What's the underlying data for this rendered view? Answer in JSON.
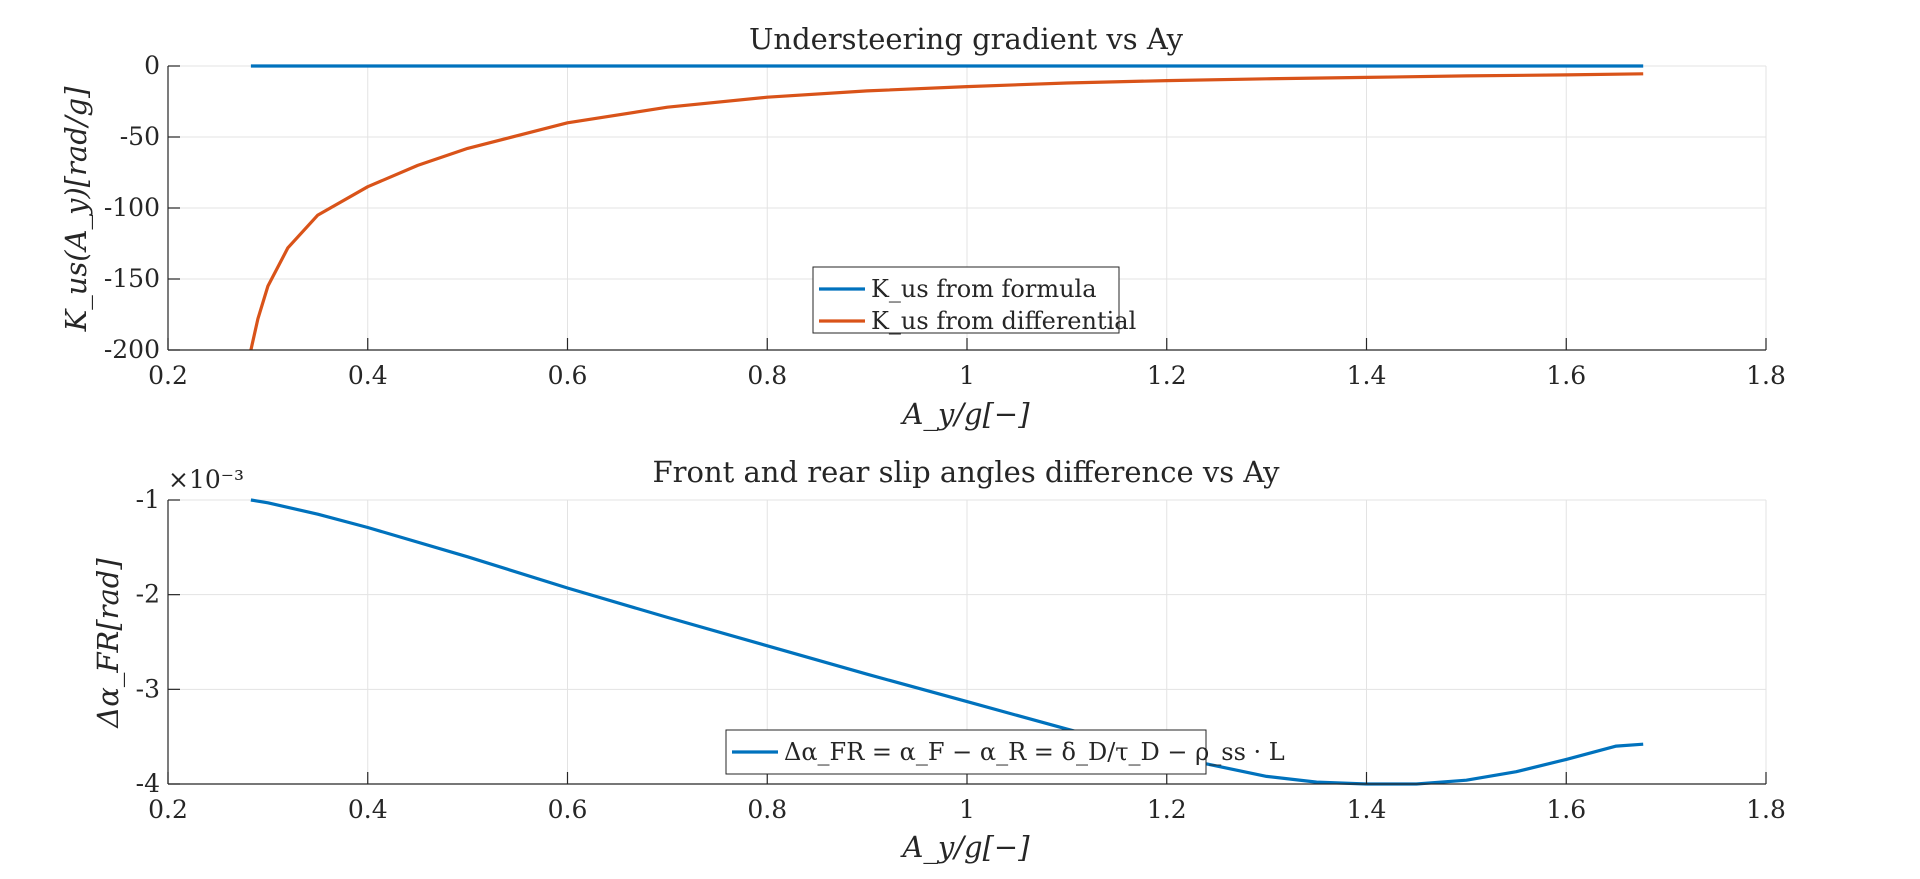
{
  "chart_data": [
    {
      "type": "line",
      "title": "Understeering gradient vs Ay",
      "xlabel": "A_y/g[−]",
      "ylabel": "K_us(A_y)[rad/g]",
      "xlim": [
        0.2,
        1.8
      ],
      "ylim": [
        -200,
        0
      ],
      "xticks": [
        0.2,
        0.4,
        0.6,
        0.8,
        1,
        1.2,
        1.4,
        1.6,
        1.8
      ],
      "xtick_labels": [
        "0.2",
        "0.4",
        "0.6",
        "0.8",
        "1",
        "1.2",
        "1.4",
        "1.6",
        "1.8"
      ],
      "yticks": [
        0,
        -50,
        -100,
        -150,
        -200
      ],
      "ytick_labels": [
        "0",
        "-50",
        "-100",
        "-150",
        "-200"
      ],
      "grid": true,
      "legend": "bottom-center",
      "series": [
        {
          "name": "K_us from formula",
          "color": "#0072BD",
          "x": [
            0.283,
            0.4,
            0.6,
            0.8,
            1.0,
            1.2,
            1.4,
            1.6,
            1.677
          ],
          "y": [
            0,
            0,
            0,
            0,
            0,
            0,
            0,
            0,
            0
          ]
        },
        {
          "name": "K_us from differential",
          "color": "#D95319",
          "x": [
            0.283,
            0.29,
            0.3,
            0.32,
            0.35,
            0.4,
            0.45,
            0.5,
            0.6,
            0.7,
            0.8,
            0.9,
            1.0,
            1.1,
            1.2,
            1.3,
            1.4,
            1.5,
            1.6,
            1.677
          ],
          "y": [
            -200,
            -178,
            -155,
            -128,
            -105,
            -85,
            -70,
            -58,
            -40,
            -29,
            -22,
            -17.5,
            -14.5,
            -12,
            -10.3,
            -9,
            -8,
            -7,
            -6.3,
            -5.5
          ]
        }
      ]
    },
    {
      "type": "line",
      "title": "Front and rear slip angles difference vs Ay",
      "xlabel": "A_y/g[−]",
      "ylabel": "Δα_FR[rad]",
      "y_multiplier": "×10⁻³",
      "xlim": [
        0.2,
        1.8
      ],
      "ylim": [
        -4,
        -1
      ],
      "xticks": [
        0.2,
        0.4,
        0.6,
        0.8,
        1,
        1.2,
        1.4,
        1.6,
        1.8
      ],
      "xtick_labels": [
        "0.2",
        "0.4",
        "0.6",
        "0.8",
        "1",
        "1.2",
        "1.4",
        "1.6",
        "1.8"
      ],
      "yticks": [
        -1,
        -2,
        -3,
        -4
      ],
      "ytick_labels": [
        "-1",
        "-2",
        "-3",
        "-4"
      ],
      "grid": true,
      "legend": "bottom-center",
      "series": [
        {
          "name": "Δα_FR = α_F − α_R = δ_D/τ_D − ρ_ss · L",
          "color": "#0072BD",
          "x": [
            0.283,
            0.3,
            0.35,
            0.4,
            0.5,
            0.6,
            0.7,
            0.8,
            0.9,
            1.0,
            1.1,
            1.2,
            1.3,
            1.35,
            1.4,
            1.45,
            1.5,
            1.55,
            1.6,
            1.65,
            1.677
          ],
          "y": [
            -1.0,
            -1.03,
            -1.15,
            -1.29,
            -1.6,
            -1.93,
            -2.24,
            -2.54,
            -2.84,
            -3.13,
            -3.42,
            -3.7,
            -3.92,
            -3.98,
            -4.0,
            -4.0,
            -3.96,
            -3.87,
            -3.74,
            -3.6,
            -3.58
          ]
        }
      ]
    }
  ]
}
